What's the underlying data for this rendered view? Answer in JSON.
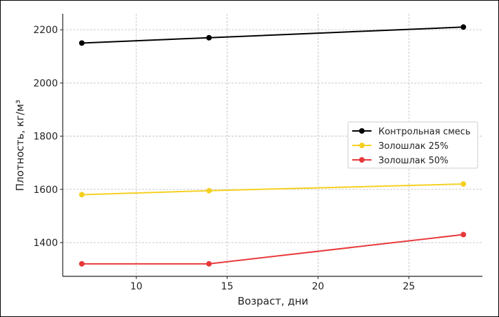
{
  "chart_data": {
    "type": "line",
    "title": "",
    "xlabel": "Возраст, дни",
    "ylabel": "Плотность, кг/м³",
    "x": [
      7,
      14,
      28
    ],
    "xlim": [
      5.95,
      29.05
    ],
    "ylim": [
      1273,
      2260
    ],
    "xticks": [
      10,
      15,
      20,
      25
    ],
    "yticks": [
      1400,
      1600,
      1800,
      2000,
      2200
    ],
    "grid": true,
    "legend_position": "center-right",
    "series": [
      {
        "name": "Контрольная смесь",
        "color": "#000000",
        "values": [
          2150,
          2170,
          2210
        ]
      },
      {
        "name": "Золошлак 25%",
        "color": "#f5d020",
        "values": [
          1580,
          1595,
          1620
        ]
      },
      {
        "name": "Золошлак 50%",
        "color": "#e8383a",
        "values": [
          1320,
          1320,
          1430
        ]
      }
    ]
  }
}
